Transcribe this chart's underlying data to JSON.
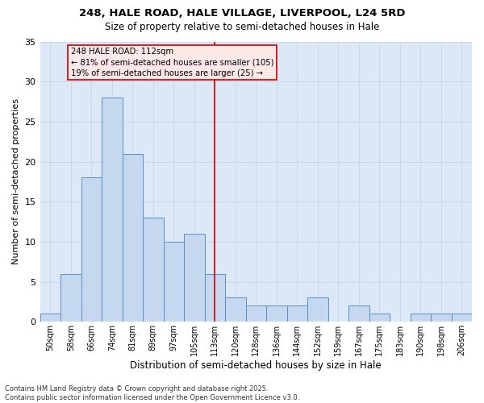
{
  "title1": "248, HALE ROAD, HALE VILLAGE, LIVERPOOL, L24 5RD",
  "title2": "Size of property relative to semi-detached houses in Hale",
  "xlabel": "Distribution of semi-detached houses by size in Hale",
  "ylabel": "Number of semi-detached properties",
  "categories": [
    "50sqm",
    "58sqm",
    "66sqm",
    "74sqm",
    "81sqm",
    "89sqm",
    "97sqm",
    "105sqm",
    "113sqm",
    "120sqm",
    "128sqm",
    "136sqm",
    "144sqm",
    "152sqm",
    "159sqm",
    "167sqm",
    "175sqm",
    "183sqm",
    "190sqm",
    "198sqm",
    "206sqm"
  ],
  "values": [
    1,
    6,
    18,
    28,
    21,
    13,
    10,
    11,
    6,
    3,
    2,
    2,
    2,
    3,
    0,
    2,
    1,
    0,
    1,
    1,
    1
  ],
  "bar_color": "#c5d8f0",
  "bar_edge_color": "#5b8fc9",
  "grid_color": "#c8d8ea",
  "background_color": "#dce8f5",
  "vline_x": 8,
  "vline_color": "#cc0000",
  "annotation_text": "248 HALE ROAD: 112sqm\n← 81% of semi-detached houses are smaller (105)\n19% of semi-detached houses are larger (25) →",
  "annotation_box_facecolor": "#fde8e8",
  "annotation_box_edge": "#cc0000",
  "footer": "Contains HM Land Registry data © Crown copyright and database right 2025.\nContains public sector information licensed under the Open Government Licence v3.0.",
  "ylim": [
    0,
    35
  ],
  "yticks": [
    0,
    5,
    10,
    15,
    20,
    25,
    30,
    35
  ]
}
